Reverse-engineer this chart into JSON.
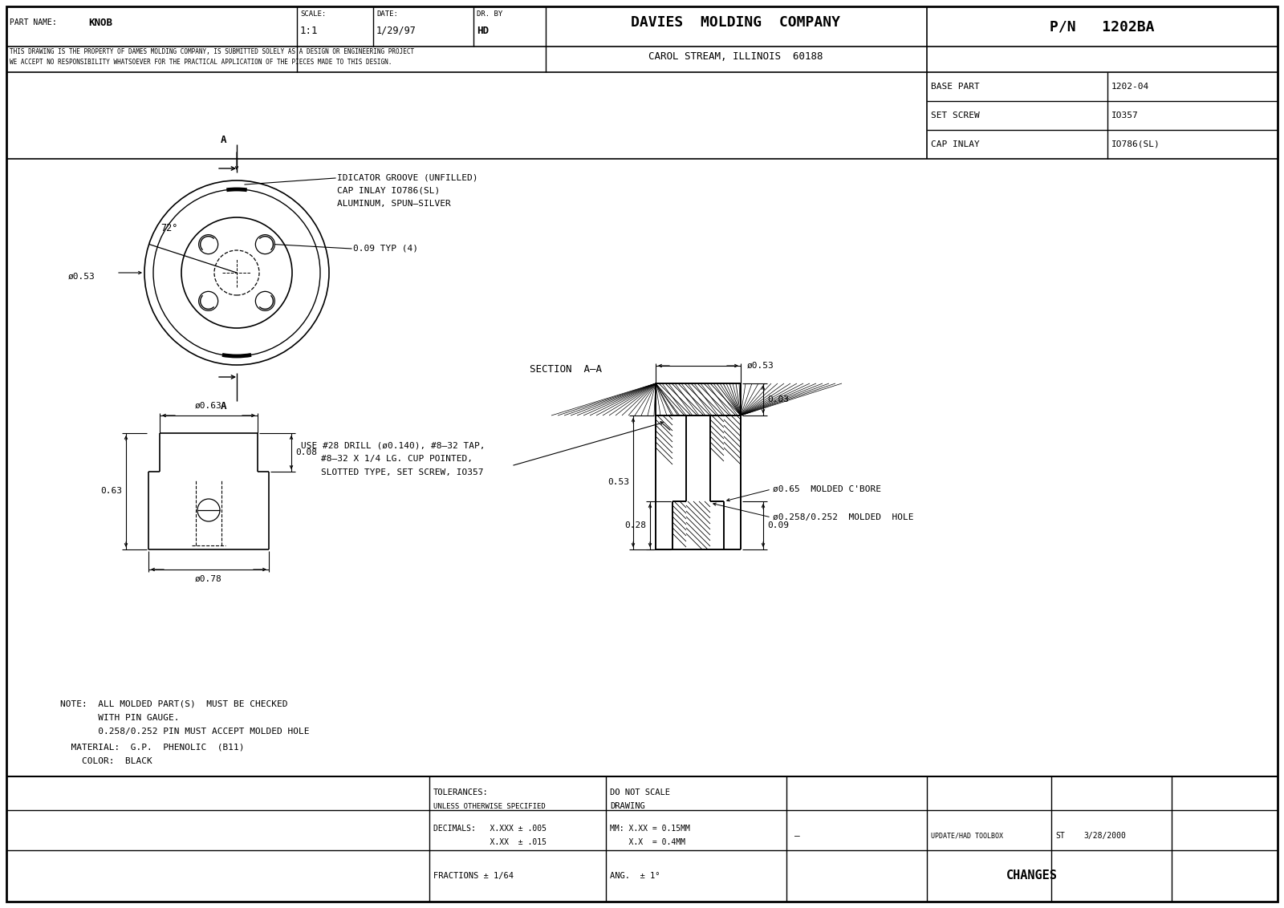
{
  "background_color": "#ffffff",
  "part_name": "KNOB",
  "scale": "1:1",
  "date": "1/29/97",
  "dr_by": "HD",
  "company": "DAVIES  MOLDING  COMPANY",
  "location": "CAROL STREAM, ILLINOIS  60188",
  "pn": "P/N   1202BA",
  "base_part_label": "BASE PART",
  "base_part_val": "1202-04",
  "set_screw_label": "SET SCREW",
  "set_screw_val": "IO357",
  "cap_inlay_label": "CAP INLAY",
  "cap_inlay_val": "IO786(SL)",
  "disclaimer1": "THIS DRAWING IS THE PROPERTY OF DAMES MOLDING COMPANY, IS SUBMITTED SOLELY AS A DESIGN OR ENGINEERING PROJECT",
  "disclaimer2": "WE ACCEPT NO RESPONSIBILITY WHATSOEVER FOR THE PRACTICAL APPLICATION OF THE PIECES MADE TO THIS DESIGN.",
  "note_line1": "NOTE:  ALL MOLDED PART(S)  MUST BE CHECKED",
  "note_line2": "       WITH PIN GAUGE.",
  "note_line3": "       0.258/0.252 PIN MUST ACCEPT MOLDED HOLE",
  "note_line4": "  MATERIAL:  G.P.  PHENOLIC  (B11)",
  "note_line5": "    COLOR:  BLACK",
  "tol_label": "TOLERANCES:",
  "tol_sub": "UNLESS OTHERWISE SPECIFIED",
  "tol_right1": "DO NOT SCALE",
  "tol_right2": "DRAWING",
  "dec_label1": "DECIMALS:   X.XXX ± .005",
  "dec_label2": "            X.XX  ± .015",
  "dec_right1": "MM: X.XX = 0.15MM",
  "dec_right2": "    X.X  = 0.4MM",
  "dec_dash": "–",
  "dec_update": "UPDATE/HAD TOOLBOX",
  "dec_st": "ST",
  "dec_date": "3/28/2000",
  "frac_label": "FRACTIONS ± 1/64",
  "ang_label": "ANG.  ± 1°",
  "changes_label": "CHANGES",
  "drill_line1": "USE #28 DRILL (ø0.140), #8–32 TAP,",
  "drill_line2": "#8–32 X 1/4 LG. CUP POINTED,",
  "drill_line3": "SLOTTED TYPE, SET SCREW, IO357",
  "section_label": "SECTION  A–A",
  "groove_label": "IDICATOR GROOVE (UNFILLED)",
  "cap_label": "CAP INLAY IO786(SL)",
  "alum_label": "ALUMINUM, SPUN–SILVER",
  "typ_label": "0.09 TYP (4)",
  "bore_label": "ø0.65  MOLDED C'BORE",
  "hole_label": "ø0.258/0.252  MOLDED  HOLE"
}
